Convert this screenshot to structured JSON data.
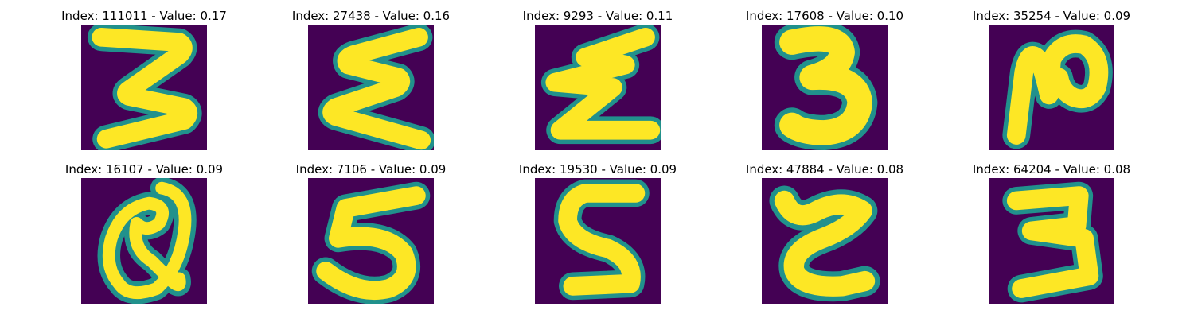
{
  "colors": {
    "background": "#440154",
    "edge": "#21918c",
    "stroke": "#fde725"
  },
  "panels": [
    {
      "title": "Index: 111011 - Value: 0.17",
      "glyph": "digit-3"
    },
    {
      "title": "Index: 27438 - Value: 0.16",
      "glyph": "sigma-like"
    },
    {
      "title": "Index: 9293 - Value: 0.11",
      "glyph": "z-zigzag"
    },
    {
      "title": "Index: 17608 - Value: 0.10",
      "glyph": "digit-3-bold"
    },
    {
      "title": "Index: 35254 - Value: 0.09",
      "glyph": "loop-n"
    },
    {
      "title": "Index: 16107 - Value: 0.09",
      "glyph": "loop-a"
    },
    {
      "title": "Index: 7106 - Value: 0.09",
      "glyph": "digit-5"
    },
    {
      "title": "Index: 19530 - Value: 0.09",
      "glyph": "digit-5-s"
    },
    {
      "title": "Index: 47884 - Value: 0.08",
      "glyph": "curly-z"
    },
    {
      "title": "Index: 64204 - Value: 0.08",
      "glyph": "digit-3-flat"
    }
  ]
}
